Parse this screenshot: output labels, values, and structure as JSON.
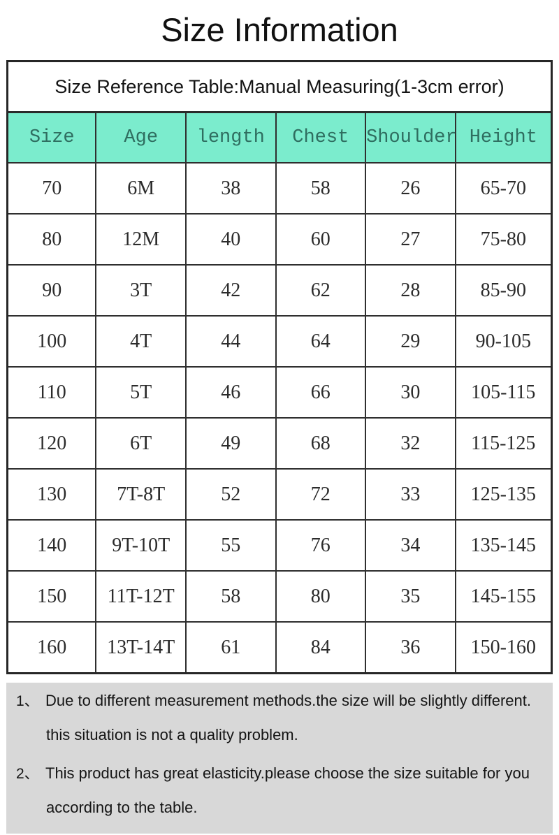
{
  "page": {
    "title": "Size Information"
  },
  "table": {
    "caption": "Size Reference Table:Manual Measuring(1-3cm error)",
    "columns": [
      "Size",
      "Age",
      "length",
      "Chest",
      "Shoulder",
      "Height"
    ],
    "rows": [
      [
        "70",
        "6M",
        "38",
        "58",
        "26",
        "65-70"
      ],
      [
        "80",
        "12M",
        "40",
        "60",
        "27",
        "75-80"
      ],
      [
        "90",
        "3T",
        "42",
        "62",
        "28",
        "85-90"
      ],
      [
        "100",
        "4T",
        "44",
        "64",
        "29",
        "90-105"
      ],
      [
        "110",
        "5T",
        "46",
        "66",
        "30",
        "105-115"
      ],
      [
        "120",
        "6T",
        "49",
        "68",
        "32",
        "115-125"
      ],
      [
        "130",
        "7T-8T",
        "52",
        "72",
        "33",
        "125-135"
      ],
      [
        "140",
        "9T-10T",
        "55",
        "76",
        "34",
        "135-145"
      ],
      [
        "150",
        "11T-12T",
        "58",
        "80",
        "35",
        "145-155"
      ],
      [
        "160",
        "13T-14T",
        "61",
        "84",
        "36",
        "150-160"
      ]
    ]
  },
  "notes": {
    "items": [
      {
        "marker": "1、",
        "line1": "Due to different measurement methods.the size will be slightly different.",
        "line2": "this situation is not a quality problem."
      },
      {
        "marker": "2、",
        "line1": "This product has great elasticity.please choose the size suitable for you",
        "line2": "according to the table."
      }
    ]
  },
  "colors": {
    "header_bg": "#7beccd",
    "header_text": "#2f6e60",
    "notes_bg": "#d8d8d8",
    "border": "#2f2f2f"
  }
}
